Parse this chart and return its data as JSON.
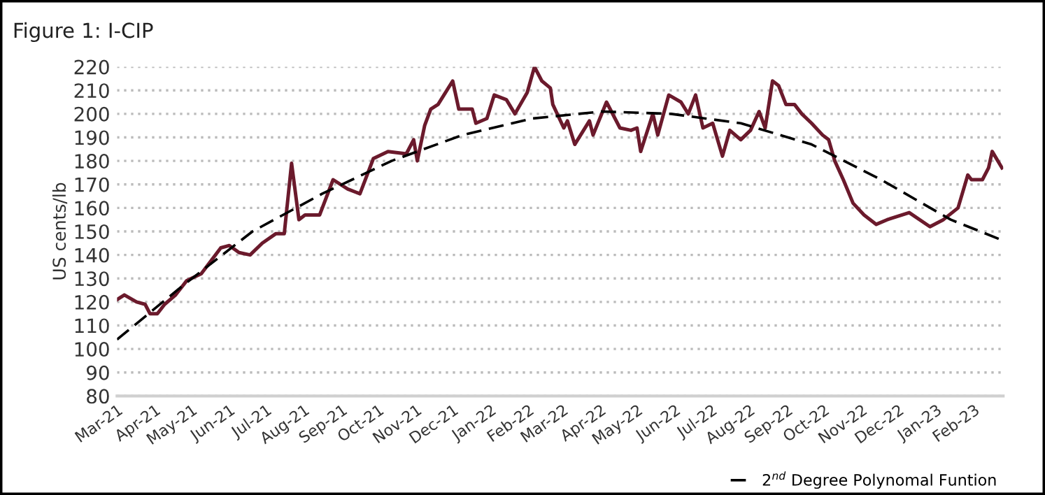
{
  "chart_data": {
    "type": "line",
    "title": "Figure 1: I-CIP",
    "ylabel": "US cents/lb",
    "ylim": [
      80,
      220
    ],
    "yticks": [
      80,
      90,
      100,
      110,
      120,
      130,
      140,
      150,
      160,
      170,
      180,
      190,
      200,
      210,
      220
    ],
    "xlim": [
      "2021-03-01",
      "2023-02-25"
    ],
    "xticks": [
      {
        "value": "2021-03-01",
        "label": "Mar-21"
      },
      {
        "value": "2021-04-01",
        "label": "Apr-21"
      },
      {
        "value": "2021-05-01",
        "label": "May-21"
      },
      {
        "value": "2021-06-01",
        "label": "Jun-21"
      },
      {
        "value": "2021-07-01",
        "label": "Jul-21"
      },
      {
        "value": "2021-08-01",
        "label": "Aug-21"
      },
      {
        "value": "2021-09-01",
        "label": "Sep-21"
      },
      {
        "value": "2021-10-01",
        "label": "Oct-21"
      },
      {
        "value": "2021-11-01",
        "label": "Nov-21"
      },
      {
        "value": "2021-12-01",
        "label": "Dec-21"
      },
      {
        "value": "2022-01-01",
        "label": "Jan-22"
      },
      {
        "value": "2022-02-01",
        "label": "Feb-22"
      },
      {
        "value": "2022-03-01",
        "label": "Mar-22"
      },
      {
        "value": "2022-04-01",
        "label": "Apr-22"
      },
      {
        "value": "2022-05-01",
        "label": "May-22"
      },
      {
        "value": "2022-06-01",
        "label": "Jun-22"
      },
      {
        "value": "2022-07-01",
        "label": "Jul-22"
      },
      {
        "value": "2022-08-01",
        "label": "Aug-22"
      },
      {
        "value": "2022-09-01",
        "label": "Sep-22"
      },
      {
        "value": "2022-10-01",
        "label": "Oct-22"
      },
      {
        "value": "2022-11-01",
        "label": "Nov-22"
      },
      {
        "value": "2022-12-01",
        "label": "Dec-22"
      },
      {
        "value": "2023-01-01",
        "label": "Jan-23"
      },
      {
        "value": "2023-02-01",
        "label": "Feb-23"
      }
    ],
    "grid": "y",
    "legend": "bottom right",
    "series": [
      {
        "type": "line",
        "color": "#6b1a2c",
        "line_style": "solid",
        "x": [
          "2021-03-01",
          "2021-03-07",
          "2021-03-17",
          "2021-03-24",
          "2021-03-28",
          "2021-04-03",
          "2021-04-09",
          "2021-04-18",
          "2021-04-27",
          "2021-05-09",
          "2021-05-25",
          "2021-06-01",
          "2021-06-09",
          "2021-06-18",
          "2021-06-28",
          "2021-07-09",
          "2021-07-16",
          "2021-07-22",
          "2021-07-28",
          "2021-08-02",
          "2021-08-14",
          "2021-08-25",
          "2021-09-06",
          "2021-09-16",
          "2021-09-27",
          "2021-10-09",
          "2021-10-24",
          "2021-10-30",
          "2021-11-02",
          "2021-11-08",
          "2021-11-13",
          "2021-11-19",
          "2021-11-25",
          "2021-12-01",
          "2021-12-06",
          "2021-12-17",
          "2021-12-20",
          "2021-12-29",
          "2022-01-04",
          "2022-01-14",
          "2022-01-21",
          "2022-01-31",
          "2022-02-06",
          "2022-02-12",
          "2022-02-19",
          "2022-02-21",
          "2022-03-02",
          "2022-03-05",
          "2022-03-11",
          "2022-03-23",
          "2022-03-26",
          "2022-04-06",
          "2022-04-17",
          "2022-04-26",
          "2022-05-01",
          "2022-05-04",
          "2022-05-14",
          "2022-05-18",
          "2022-05-27",
          "2022-06-06",
          "2022-06-12",
          "2022-06-18",
          "2022-06-24",
          "2022-07-02",
          "2022-07-10",
          "2022-07-16",
          "2022-07-25",
          "2022-08-02",
          "2022-08-09",
          "2022-08-14",
          "2022-08-20",
          "2022-08-25",
          "2022-08-31",
          "2022-09-07",
          "2022-09-13",
          "2022-09-21",
          "2022-09-30",
          "2022-10-05",
          "2022-10-10",
          "2022-10-17",
          "2022-10-25",
          "2022-11-03",
          "2022-11-13",
          "2022-11-22",
          "2022-12-10",
          "2022-12-27",
          "2023-01-07",
          "2023-01-19",
          "2023-01-27",
          "2023-01-30",
          "2023-02-08",
          "2023-02-13",
          "2023-02-16",
          "2023-02-24"
        ],
        "values": [
          121,
          123,
          120,
          119,
          115,
          115,
          119,
          123,
          129,
          132,
          143,
          144,
          141,
          140,
          145,
          149,
          149,
          179,
          155,
          157,
          157,
          172,
          168,
          166,
          181,
          184,
          183,
          189,
          180,
          195,
          202,
          204,
          209,
          214,
          202,
          202,
          196,
          198,
          208,
          206,
          200,
          209,
          220,
          214,
          211,
          204,
          194,
          197,
          187,
          197,
          191,
          205,
          194,
          193,
          194,
          184,
          200,
          191,
          208,
          205,
          200,
          208,
          194,
          196,
          182,
          193,
          189,
          193,
          201,
          194,
          214,
          212,
          204,
          204,
          200,
          196,
          191,
          189,
          180,
          172,
          162,
          157,
          153,
          155,
          158,
          152,
          155,
          160,
          174,
          172,
          172,
          177,
          184,
          177
        ]
      },
      {
        "type": "line",
        "name": "2$^{nd}$ Degree Polynomal Funtion",
        "color": "#000000",
        "line_style": "dashed",
        "x": [
          "2021-03-01",
          "2021-04-24",
          "2021-06-20",
          "2021-08-16",
          "2021-10-12",
          "2021-12-09",
          "2022-02-04",
          "2022-04-02",
          "2022-05-29",
          "2022-07-25",
          "2022-09-21",
          "2022-11-17",
          "2023-01-13",
          "2023-02-23"
        ],
        "values": [
          104,
          127,
          150,
          166,
          180,
          191,
          198,
          201,
          200,
          196,
          187,
          172,
          155,
          146.5
        ]
      }
    ]
  }
}
